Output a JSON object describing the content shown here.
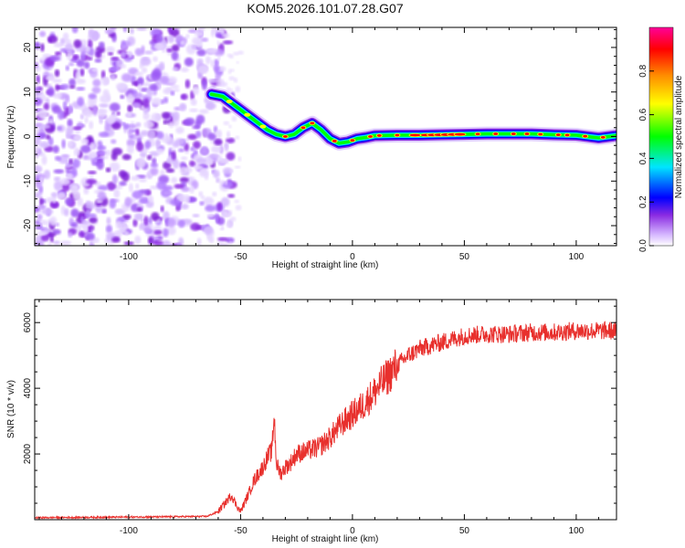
{
  "title": "KOM5.2026.101.07.28.G07",
  "chart_data": [
    {
      "type": "heatmap",
      "name": "spectrogram",
      "xlabel": "Height of straight line (km)",
      "ylabel": "Frequency (Hz)",
      "xlim": [
        -142,
        118
      ],
      "ylim": [
        -24.5,
        24.5
      ],
      "xticks": [
        -100,
        -50,
        0,
        50,
        100
      ],
      "xtick_labels": [
        "-100",
        "-50",
        "0",
        "50",
        "100"
      ],
      "yticks": [
        -20,
        -10,
        0,
        10,
        20
      ],
      "ytick_labels": [
        "-20",
        "-10",
        "0",
        "10",
        "20"
      ],
      "colorbar": {
        "label": "Normalized spectral amplitude",
        "range": [
          0,
          1
        ],
        "ticks": [
          0,
          0.2,
          0.4,
          0.6,
          0.8
        ],
        "tick_labels": [
          "0.0",
          "0.2",
          "0.4",
          "0.6",
          "0.8"
        ],
        "colors": [
          "#ffffff",
          "#d6b8ff",
          "#8a2be2",
          "#0000ff",
          "#00e5ff",
          "#00ff00",
          "#ffff00",
          "#ff8c00",
          "#ff0000",
          "#ff0099"
        ]
      },
      "noise_region_x": [
        -142,
        -60
      ],
      "ridge": {
        "x": [
          -63,
          -58,
          -54,
          -50,
          -46,
          -42,
          -38,
          -34,
          -30,
          -26,
          -22,
          -18,
          -14,
          -10,
          -6,
          -2,
          2,
          6,
          10,
          20,
          30,
          40,
          50,
          60,
          70,
          80,
          90,
          100,
          110,
          118
        ],
        "y": [
          9.5,
          9,
          7.5,
          6,
          4.5,
          3,
          1.5,
          0.5,
          0,
          0.5,
          2,
          3,
          1.5,
          -0.5,
          -1.5,
          -1.2,
          -0.5,
          -0.2,
          0.2,
          0.3,
          0.3,
          0.4,
          0.5,
          0.6,
          0.6,
          0.6,
          0.4,
          0.3,
          -0.3,
          0.2
        ]
      }
    },
    {
      "type": "line",
      "name": "snr",
      "xlabel": "Height of straight line (km)",
      "ylabel": "SNR (10 * v/v)",
      "xlim": [
        -142,
        118
      ],
      "ylim": [
        0,
        6700
      ],
      "xticks": [
        -100,
        -50,
        0,
        50,
        100
      ],
      "xtick_labels": [
        "-100",
        "-50",
        "0",
        "50",
        "100"
      ],
      "yticks": [
        2000,
        4000,
        6000
      ],
      "ytick_labels": [
        "2000",
        "4000",
        "6000"
      ],
      "color": "#e8302d",
      "x": [
        -142,
        -120,
        -100,
        -80,
        -65,
        -60,
        -57,
        -54,
        -52,
        -50,
        -47,
        -44,
        -40,
        -38,
        -36,
        -35,
        -34,
        -32,
        -30,
        -28,
        -25,
        -20,
        -15,
        -10,
        -5,
        0,
        5,
        10,
        15,
        20,
        25,
        30,
        35,
        40,
        45,
        50,
        60,
        70,
        80,
        90,
        100,
        110,
        118
      ],
      "values": [
        60,
        70,
        80,
        90,
        100,
        250,
        500,
        750,
        450,
        250,
        700,
        1200,
        1600,
        1900,
        2100,
        3200,
        1700,
        1400,
        1600,
        1700,
        2000,
        2100,
        2200,
        2500,
        2900,
        3200,
        3500,
        3900,
        4300,
        4700,
        5000,
        5200,
        5300,
        5400,
        5500,
        5600,
        5650,
        5650,
        5700,
        5700,
        5750,
        5750,
        5750
      ]
    }
  ]
}
